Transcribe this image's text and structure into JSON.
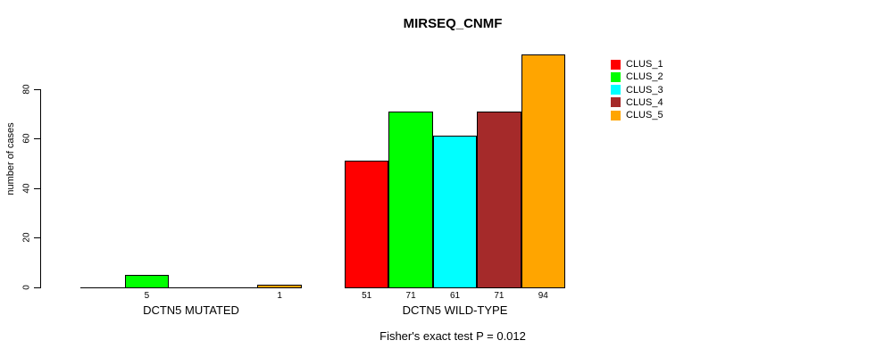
{
  "title": "MIRSEQ_CNMF",
  "y_axis": {
    "label": "number of cases",
    "tick_labels": [
      "0",
      "20",
      "40",
      "60",
      "80"
    ]
  },
  "footnote": "Fisher's exact test P = 0.012",
  "legend": {
    "entries": [
      {
        "label": "CLUS_1",
        "color": "#FF0000"
      },
      {
        "label": "CLUS_2",
        "color": "#00FF00"
      },
      {
        "label": "CLUS_3",
        "color": "#00FFFF"
      },
      {
        "label": "CLUS_4",
        "color": "#A52A2A"
      },
      {
        "label": "CLUS_5",
        "color": "#FFA500"
      }
    ]
  },
  "chart_data": {
    "type": "bar",
    "title": "MIRSEQ_CNMF",
    "xlabel": "",
    "ylabel": "number of cases",
    "ylim": [
      0,
      94
    ],
    "yticks": [
      0,
      20,
      40,
      60,
      80
    ],
    "grid": false,
    "legend_position": "right-outside-top",
    "series_names": [
      "CLUS_1",
      "CLUS_2",
      "CLUS_3",
      "CLUS_4",
      "CLUS_5"
    ],
    "series_colors": [
      "#FF0000",
      "#00FF00",
      "#00FFFF",
      "#A52A2A",
      "#FFA500"
    ],
    "categories": [
      "DCTN5 MUTATED",
      "DCTN5 WILD-TYPE"
    ],
    "groups": [
      {
        "label": "DCTN5 MUTATED",
        "values": [
          0,
          5,
          0,
          0,
          1
        ]
      },
      {
        "label": "DCTN5 WILD-TYPE",
        "values": [
          51,
          71,
          61,
          71,
          94
        ]
      }
    ],
    "bar_value_labels_rule": "value shown below each bar when value > 0",
    "shown_bar_value_labels": [
      "5",
      "1",
      "51",
      "71",
      "61",
      "71",
      "94"
    ],
    "annotation": "Fisher's exact test P = 0.012"
  }
}
